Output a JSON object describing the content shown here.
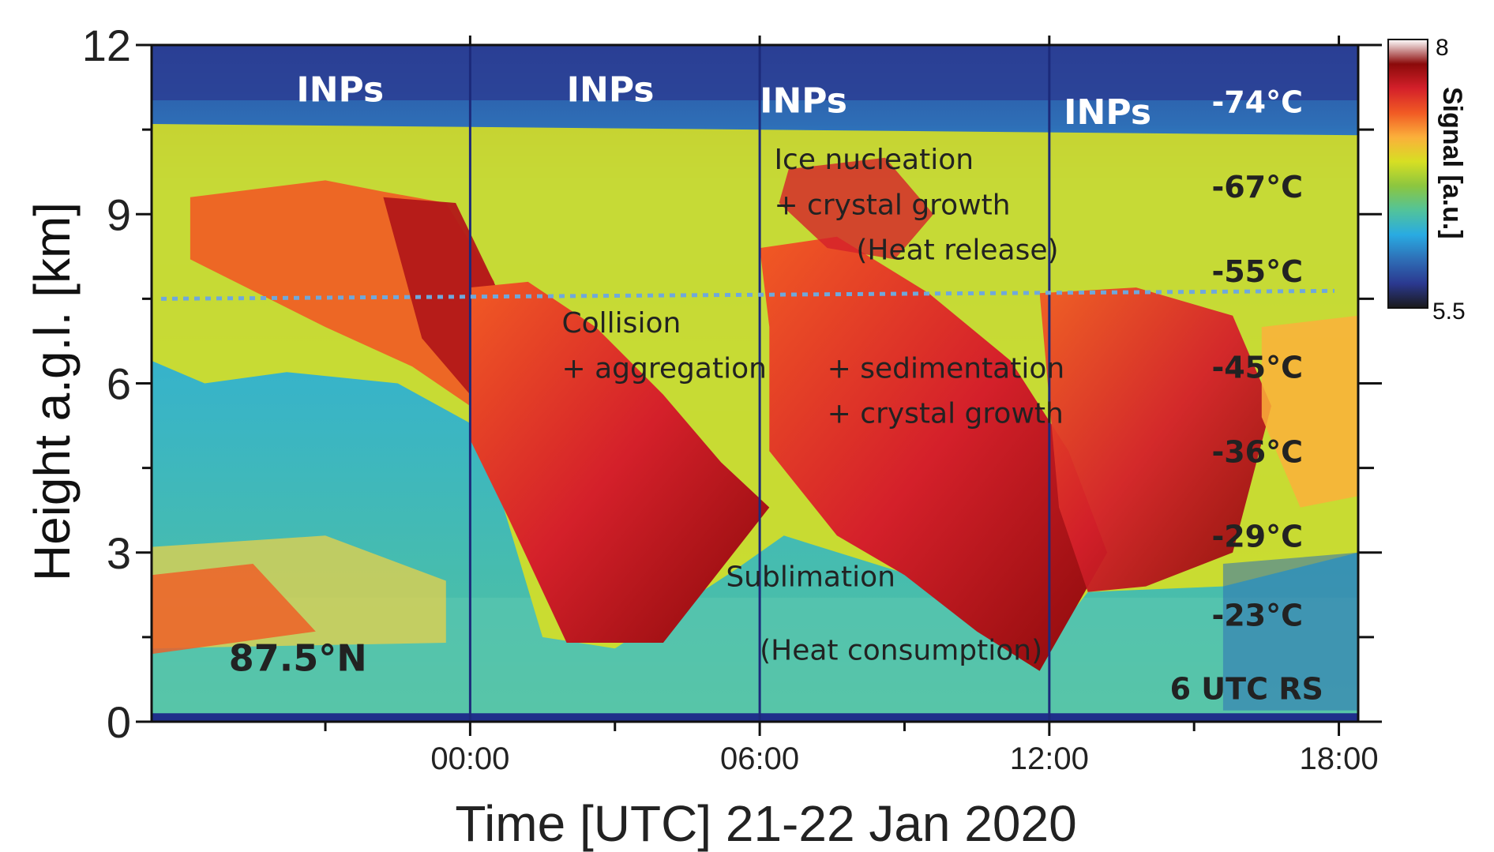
{
  "chart_data": {
    "type": "heatmap",
    "title": "",
    "xlabel": "Time [UTC] 21-22 Jan 2020",
    "ylabel": "Height a.g.l. [km]",
    "x_unit": "hours",
    "xlim": [
      -6.6,
      18.4
    ],
    "ylim": [
      0,
      12
    ],
    "x_ticks": [
      {
        "value": 0,
        "label": "00:00"
      },
      {
        "value": 6,
        "label": "06:00"
      },
      {
        "value": 12,
        "label": "12:00"
      },
      {
        "value": 18,
        "label": "18:00"
      }
    ],
    "x_minor_ticks": [
      -3,
      3,
      9,
      15
    ],
    "y_ticks": [
      {
        "value": 0,
        "label": "0"
      },
      {
        "value": 3,
        "label": "3"
      },
      {
        "value": 6,
        "label": "6"
      },
      {
        "value": 9,
        "label": "9"
      },
      {
        "value": 12,
        "label": "12"
      }
    ],
    "y_minor_ticks": [
      1.5,
      4.5,
      7.5,
      10.5
    ],
    "colorbar": {
      "label": "Signal [a.u.]",
      "max": 8,
      "min": 5.5,
      "max_label": "8",
      "min_label": "5.5",
      "colors": [
        "#1a1a1a",
        "#2b3990",
        "#2e6fb7",
        "#29abe2",
        "#52c39a",
        "#8cc63f",
        "#d7df23",
        "#fbb03b",
        "#f15a24",
        "#d4202a",
        "#8b0a0a",
        "#ffffff"
      ]
    },
    "vertical_lines_hours": [
      0,
      6,
      12
    ],
    "reference_line": {
      "height_km": 7.5,
      "color": "#6fa8dc"
    },
    "temperature_labels": [
      {
        "height_km": 10.8,
        "label": "-74°C"
      },
      {
        "height_km": 9.3,
        "label": "-67°C"
      },
      {
        "height_km": 7.8,
        "label": "-55°C"
      },
      {
        "height_km": 6.1,
        "label": "-45°C"
      },
      {
        "height_km": 4.6,
        "label": "-36°C"
      },
      {
        "height_km": 3.1,
        "label": "-29°C"
      },
      {
        "height_km": 1.7,
        "label": "-23°C"
      }
    ],
    "annotations": [
      {
        "id": "inp-1",
        "text": "INPs",
        "x_hour": -3.6,
        "height_km": 11.0,
        "style": "white-bold"
      },
      {
        "id": "inp-2",
        "text": "INPs",
        "x_hour": 2.0,
        "height_km": 11.0,
        "style": "white-bold"
      },
      {
        "id": "inp-3",
        "text": "INPs",
        "x_hour": 6.0,
        "height_km": 10.8,
        "style": "white-bold"
      },
      {
        "id": "inp-4",
        "text": "INPs",
        "x_hour": 12.3,
        "height_km": 10.6,
        "style": "white-bold"
      },
      {
        "id": "ice-nucleation",
        "text": "Ice nucleation",
        "x_hour": 6.3,
        "height_km": 9.8,
        "style": "dark"
      },
      {
        "id": "crystal-growth-1",
        "text": "+ crystal growth",
        "x_hour": 6.3,
        "height_km": 9.0,
        "style": "dark"
      },
      {
        "id": "heat-release",
        "text": "(Heat release)",
        "x_hour": 8.0,
        "height_km": 8.2,
        "style": "dark"
      },
      {
        "id": "collision",
        "text": "Collision",
        "x_hour": 1.9,
        "height_km": 6.9,
        "style": "dark"
      },
      {
        "id": "aggregation",
        "text": "+ aggregation",
        "x_hour": 1.9,
        "height_km": 6.1,
        "style": "dark"
      },
      {
        "id": "sedimentation",
        "text": "+ sedimentation",
        "x_hour": 7.4,
        "height_km": 6.1,
        "style": "dark"
      },
      {
        "id": "crystal-growth-2",
        "text": "+ crystal growth",
        "x_hour": 7.4,
        "height_km": 5.3,
        "style": "dark"
      },
      {
        "id": "sublimation",
        "text": "Sublimation",
        "x_hour": 5.3,
        "height_km": 2.4,
        "style": "dark"
      },
      {
        "id": "heat-consumption",
        "text": "(Heat consumption)",
        "x_hour": 6.0,
        "height_km": 1.1,
        "style": "dark"
      },
      {
        "id": "latitude",
        "text": "87.5°N",
        "x_hour": -5.0,
        "height_km": 0.9,
        "style": "dark-bold"
      },
      {
        "id": "radiosonde",
        "text": "6 UTC RS",
        "x_hour": 14.5,
        "height_km": 0.4,
        "style": "dark-bold"
      }
    ]
  }
}
